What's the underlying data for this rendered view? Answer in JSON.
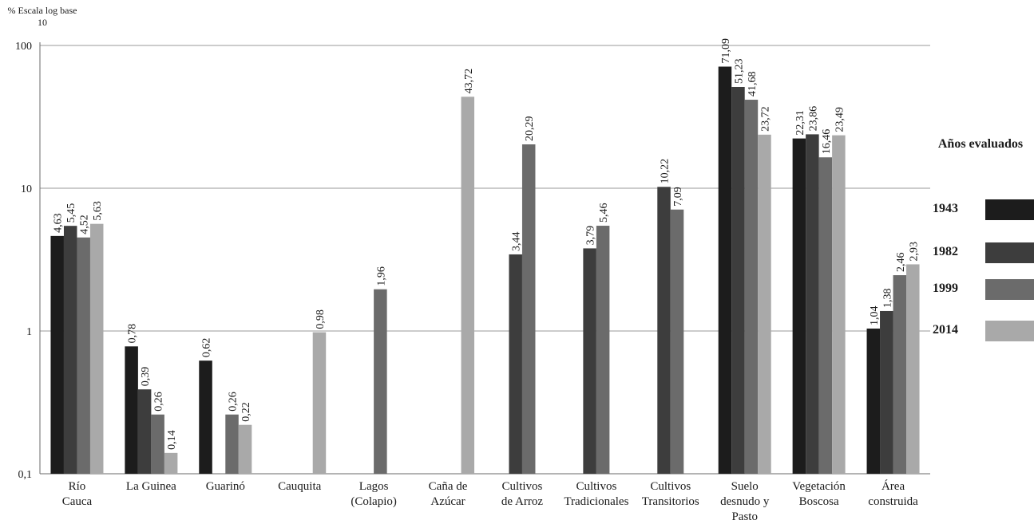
{
  "chart_data": {
    "type": "bar",
    "ylabel": "% Escala log base 10",
    "yscale": "log10",
    "ylim": [
      0.1,
      100
    ],
    "yticks": [
      "0,1",
      "1",
      "10",
      "100"
    ],
    "legend_title": "Años evaluados",
    "legend_position": "right",
    "categories": [
      [
        "Río",
        "Cauca"
      ],
      [
        "La Guinea"
      ],
      [
        "Guarinó"
      ],
      [
        "Cauquita"
      ],
      [
        "Lagos",
        "(Colapio)"
      ],
      [
        "Caña de",
        "Azúcar"
      ],
      [
        "Cultivos",
        "de Arroz"
      ],
      [
        "Cultivos",
        "Tradicionales"
      ],
      [
        "Cultivos",
        "Transitorios"
      ],
      [
        "Suelo",
        "desnudo y",
        "Pasto"
      ],
      [
        "Vegetación",
        "Boscosa"
      ],
      [
        "Área",
        "construida"
      ]
    ],
    "series": [
      {
        "name": "1943",
        "color": "#1c1c1c",
        "values": [
          4.63,
          0.78,
          0.62,
          null,
          null,
          null,
          null,
          null,
          null,
          71.09,
          22.31,
          1.04
        ],
        "labels": [
          "4,63",
          "0,78",
          "0,62",
          null,
          null,
          null,
          null,
          null,
          null,
          "71,09",
          "22,31",
          "1,04"
        ]
      },
      {
        "name": "1982",
        "color": "#3d3d3d",
        "values": [
          5.45,
          0.39,
          null,
          null,
          null,
          null,
          3.44,
          3.79,
          10.22,
          51.23,
          23.86,
          1.38
        ],
        "labels": [
          "5,45",
          "0,39",
          null,
          null,
          null,
          null,
          "3,44",
          "3,79",
          "10,22",
          "51,23",
          "23,86",
          "1,38"
        ]
      },
      {
        "name": "1999",
        "color": "#6b6b6b",
        "values": [
          4.52,
          0.26,
          0.26,
          null,
          1.96,
          null,
          20.29,
          5.46,
          7.09,
          41.68,
          16.46,
          2.46
        ],
        "labels": [
          "4,52",
          "0,26",
          "0,26",
          null,
          "1,96",
          null,
          "20,29",
          "5,46",
          "7,09",
          "41,68",
          "16,46",
          "2,46"
        ]
      },
      {
        "name": "2014",
        "color": "#a9a9a9",
        "values": [
          5.63,
          0.14,
          0.22,
          0.98,
          null,
          43.72,
          null,
          null,
          null,
          23.72,
          23.49,
          2.93
        ],
        "labels": [
          "5,63",
          "0,14",
          "0,22",
          "0,98",
          null,
          "43,72",
          null,
          null,
          null,
          "23,72",
          "23,49",
          "2,93"
        ]
      }
    ]
  }
}
